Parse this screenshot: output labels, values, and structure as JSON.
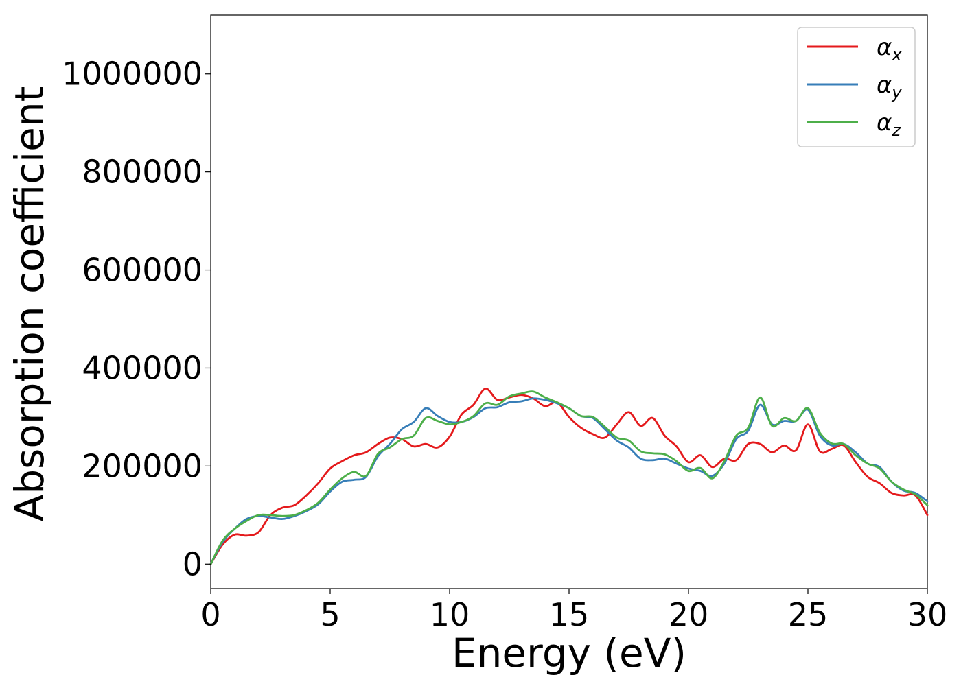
{
  "chart_data": {
    "type": "line",
    "title": "",
    "xlabel": "Energy (eV)",
    "ylabel": "Absorption coefficient",
    "xlim": [
      0,
      30
    ],
    "ylim": [
      -50000,
      1120000
    ],
    "xticks": [
      "0",
      "5",
      "10",
      "15",
      "20",
      "25",
      "30"
    ],
    "yticks": [
      "0",
      "200000",
      "400000",
      "600000",
      "800000",
      "1000000"
    ],
    "grid": false,
    "legend_position": "top-right",
    "series": [
      {
        "name": "α_x",
        "symbol": "α",
        "subscript": "x",
        "color": "#e41a1c",
        "x": [
          0,
          0.5,
          1,
          1.5,
          2,
          2.5,
          3,
          3.5,
          4,
          4.5,
          5,
          5.5,
          6,
          6.5,
          7,
          7.5,
          8,
          8.5,
          9,
          9.5,
          10,
          10.5,
          11,
          11.5,
          12,
          12.5,
          13,
          13.5,
          14,
          14.5,
          15,
          15.5,
          16,
          16.5,
          17,
          17.5,
          18,
          18.5,
          19,
          19.5,
          20,
          20.5,
          21,
          21.5,
          22,
          22.5,
          23,
          23.5,
          24,
          24.5,
          25,
          25.5,
          26,
          26.5,
          27,
          27.5,
          28,
          28.5,
          29,
          29.5,
          30
        ],
        "y": [
          0,
          40000,
          60000,
          58000,
          65000,
          100000,
          115000,
          120000,
          140000,
          165000,
          195000,
          210000,
          222000,
          228000,
          245000,
          258000,
          255000,
          240000,
          245000,
          238000,
          260000,
          305000,
          325000,
          358000,
          335000,
          340000,
          345000,
          338000,
          322000,
          330000,
          300000,
          278000,
          265000,
          258000,
          285000,
          310000,
          282000,
          298000,
          262000,
          240000,
          208000,
          222000,
          198000,
          215000,
          212000,
          245000,
          245000,
          228000,
          242000,
          232000,
          285000,
          230000,
          235000,
          242000,
          208000,
          178000,
          165000,
          145000,
          140000,
          140000,
          100000
        ]
      },
      {
        "name": "α_y",
        "symbol": "α",
        "subscript": "y",
        "color": "#377eb8",
        "x": [
          0,
          0.5,
          1,
          1.5,
          2,
          2.5,
          3,
          3.5,
          4,
          4.5,
          5,
          5.5,
          6,
          6.5,
          7,
          7.5,
          8,
          8.5,
          9,
          9.5,
          10,
          10.5,
          11,
          11.5,
          12,
          12.5,
          13,
          13.5,
          14,
          14.5,
          15,
          15.5,
          16,
          16.5,
          17,
          17.5,
          18,
          18.5,
          19,
          19.5,
          20,
          20.5,
          21,
          21.5,
          22,
          22.5,
          23,
          23.5,
          24,
          24.5,
          25,
          25.5,
          26,
          26.5,
          27,
          27.5,
          28,
          28.5,
          29,
          29.5,
          30
        ],
        "y": [
          0,
          45000,
          72000,
          92000,
          98000,
          95000,
          92000,
          98000,
          108000,
          122000,
          148000,
          168000,
          172000,
          178000,
          220000,
          245000,
          275000,
          290000,
          318000,
          302000,
          290000,
          290000,
          300000,
          318000,
          320000,
          330000,
          332000,
          338000,
          335000,
          328000,
          318000,
          302000,
          298000,
          275000,
          252000,
          238000,
          215000,
          212000,
          215000,
          205000,
          195000,
          190000,
          180000,
          205000,
          255000,
          272000,
          325000,
          285000,
          292000,
          292000,
          315000,
          262000,
          242000,
          245000,
          228000,
          205000,
          198000,
          168000,
          150000,
          145000,
          128000
        ]
      },
      {
        "name": "α_z",
        "symbol": "α",
        "subscript": "z",
        "color": "#4daf4a",
        "x": [
          0,
          0.5,
          1,
          1.5,
          2,
          2.5,
          3,
          3.5,
          4,
          4.5,
          5,
          5.5,
          6,
          6.5,
          7,
          7.5,
          8,
          8.5,
          9,
          9.5,
          10,
          10.5,
          11,
          11.5,
          12,
          12.5,
          13,
          13.5,
          14,
          14.5,
          15,
          15.5,
          16,
          16.5,
          17,
          17.5,
          18,
          18.5,
          19,
          19.5,
          20,
          20.5,
          21,
          21.5,
          22,
          22.5,
          23,
          23.5,
          24,
          24.5,
          25,
          25.5,
          26,
          26.5,
          27,
          27.5,
          28,
          28.5,
          29,
          29.5,
          30
        ],
        "y": [
          0,
          48000,
          72000,
          88000,
          100000,
          100000,
          98000,
          100000,
          110000,
          125000,
          152000,
          175000,
          188000,
          180000,
          225000,
          238000,
          255000,
          262000,
          298000,
          292000,
          285000,
          290000,
          302000,
          328000,
          325000,
          342000,
          348000,
          352000,
          340000,
          330000,
          318000,
          302000,
          300000,
          280000,
          258000,
          252000,
          230000,
          226000,
          224000,
          210000,
          190000,
          196000,
          175000,
          210000,
          262000,
          278000,
          340000,
          282000,
          298000,
          292000,
          318000,
          268000,
          246000,
          245000,
          222000,
          205000,
          195000,
          168000,
          152000,
          142000,
          120000
        ]
      }
    ]
  }
}
